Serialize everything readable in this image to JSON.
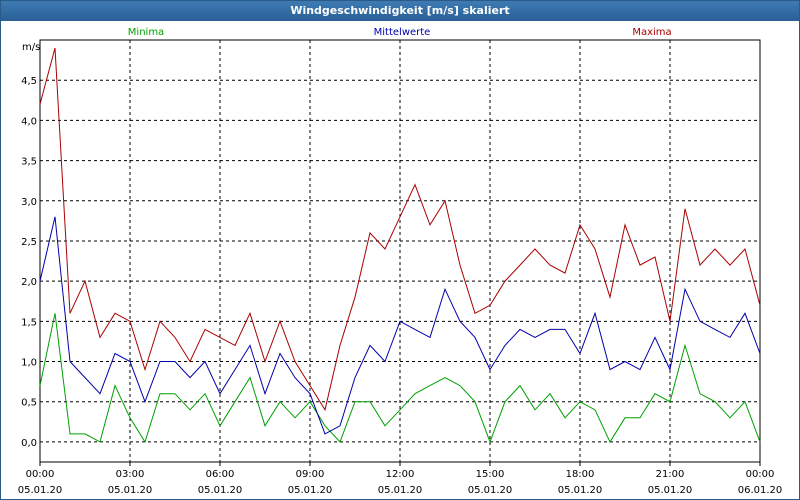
{
  "window": {
    "title": "Windgeschwindigkeit [m/s] skaliert"
  },
  "chart_data": {
    "type": "line",
    "title": "Windgeschwindigkeit [m/s] skaliert",
    "ylabel": "m/s",
    "xlabel": "",
    "ylim": [
      -0.25,
      5.0
    ],
    "xlim": [
      0,
      24
    ],
    "y_ticks": [
      "0,0",
      "0,5",
      "1,0",
      "1,5",
      "2,0",
      "2,5",
      "3,0",
      "3,5",
      "4,0",
      "4,5"
    ],
    "y_tick_values": [
      0,
      0.5,
      1.0,
      1.5,
      2.0,
      2.5,
      3.0,
      3.5,
      4.0,
      4.5
    ],
    "x_ticks": [
      {
        "time": "00:00",
        "date": "05.01.20"
      },
      {
        "time": "03:00",
        "date": "05.01.20"
      },
      {
        "time": "06:00",
        "date": "05.01.20"
      },
      {
        "time": "09:00",
        "date": "05.01.20"
      },
      {
        "time": "12:00",
        "date": "05.01.20"
      },
      {
        "time": "15:00",
        "date": "05.01.20"
      },
      {
        "time": "18:00",
        "date": "05.01.20"
      },
      {
        "time": "21:00",
        "date": "05.01.20"
      },
      {
        "time": "00:00",
        "date": "06.01.20"
      }
    ],
    "x_tick_values": [
      0,
      3,
      6,
      9,
      12,
      15,
      18,
      21,
      24
    ],
    "grid": true,
    "legend_position": "top",
    "x": [
      0.0,
      0.5,
      1.0,
      1.5,
      2.0,
      2.5,
      3.0,
      3.5,
      4.0,
      4.5,
      5.0,
      5.5,
      6.0,
      6.5,
      7.0,
      7.5,
      8.0,
      8.5,
      9.0,
      9.5,
      10.0,
      10.5,
      11.0,
      11.5,
      12.0,
      12.5,
      13.0,
      13.5,
      14.0,
      14.5,
      15.0,
      15.5,
      16.0,
      16.5,
      17.0,
      17.5,
      18.0,
      18.5,
      19.0,
      19.5,
      20.0,
      20.5,
      21.0,
      21.5,
      22.0,
      22.5,
      23.0,
      23.5,
      24.0
    ],
    "series": [
      {
        "name": "Minima",
        "color": "#00a000",
        "values": [
          0.7,
          1.6,
          0.1,
          0.1,
          0.0,
          0.7,
          0.3,
          0.0,
          0.6,
          0.6,
          0.4,
          0.6,
          0.2,
          0.5,
          0.8,
          0.2,
          0.5,
          0.3,
          0.5,
          0.2,
          0.0,
          0.5,
          0.5,
          0.2,
          0.4,
          0.6,
          0.7,
          0.8,
          0.7,
          0.5,
          0.0,
          0.5,
          0.7,
          0.4,
          0.6,
          0.3,
          0.5,
          0.4,
          0.0,
          0.3,
          0.3,
          0.6,
          0.5,
          1.2,
          0.6,
          0.5,
          0.3,
          0.5,
          0.0
        ]
      },
      {
        "name": "Mittelwerte",
        "color": "#0000aa",
        "values": [
          2.0,
          2.8,
          1.0,
          0.8,
          0.6,
          1.1,
          1.0,
          0.5,
          1.0,
          1.0,
          0.8,
          1.0,
          0.6,
          0.9,
          1.2,
          0.6,
          1.1,
          0.8,
          0.6,
          0.1,
          0.2,
          0.8,
          1.2,
          1.0,
          1.5,
          1.4,
          1.3,
          1.9,
          1.5,
          1.3,
          0.9,
          1.2,
          1.4,
          1.3,
          1.4,
          1.4,
          1.1,
          1.6,
          0.9,
          1.0,
          0.9,
          1.3,
          0.9,
          1.9,
          1.5,
          1.4,
          1.3,
          1.6,
          1.1
        ]
      },
      {
        "name": "Maxima",
        "color": "#aa0000",
        "values": [
          4.2,
          4.9,
          1.6,
          2.0,
          1.3,
          1.6,
          1.5,
          0.9,
          1.5,
          1.3,
          1.0,
          1.4,
          1.3,
          1.2,
          1.6,
          1.0,
          1.5,
          1.0,
          0.7,
          0.4,
          1.2,
          1.8,
          2.6,
          2.4,
          2.8,
          3.2,
          2.7,
          3.0,
          2.2,
          1.6,
          1.7,
          2.0,
          2.2,
          2.4,
          2.2,
          2.1,
          2.7,
          2.4,
          1.8,
          2.7,
          2.2,
          2.3,
          1.5,
          2.9,
          2.2,
          2.4,
          2.2,
          2.4,
          1.7
        ]
      }
    ]
  }
}
